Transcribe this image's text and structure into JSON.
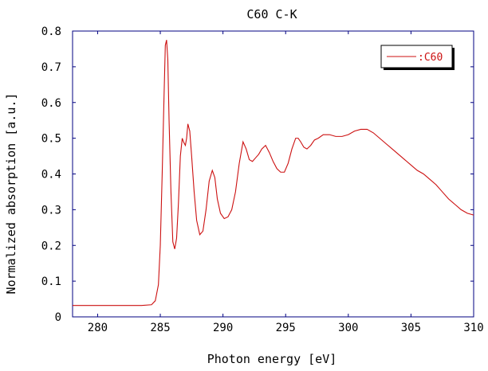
{
  "chart_data": {
    "type": "line",
    "title": "C60 C-K",
    "xlabel": "Photon energy [eV]",
    "ylabel": "Normalized absorption [a.u.]",
    "xlim": [
      278,
      310
    ],
    "ylim": [
      0,
      0.8
    ],
    "xticks": [
      280,
      285,
      290,
      295,
      300,
      305,
      310
    ],
    "yticks": [
      0,
      0.1,
      0.2,
      0.3,
      0.4,
      0.5,
      0.6,
      0.7,
      0.8
    ],
    "ytick_labels": [
      "0",
      "0.1",
      "0.2",
      "0.3",
      "0.4",
      "0.5",
      "0.6",
      "0.7",
      "0.8"
    ],
    "grid": false,
    "legend_position": "top-right",
    "colors": {
      "axes": "#000080",
      "series": "#cc1010"
    },
    "series": [
      {
        "name": ":C60",
        "x": [
          278,
          280,
          282,
          283.5,
          284.3,
          284.6,
          284.85,
          285.0,
          285.15,
          285.3,
          285.4,
          285.5,
          285.6,
          285.7,
          285.85,
          286.0,
          286.15,
          286.3,
          286.45,
          286.6,
          286.75,
          286.85,
          287.0,
          287.1,
          287.2,
          287.35,
          287.5,
          287.7,
          287.9,
          288.15,
          288.4,
          288.65,
          288.9,
          289.15,
          289.35,
          289.55,
          289.8,
          290.1,
          290.4,
          290.7,
          291.0,
          291.3,
          291.6,
          291.85,
          292.1,
          292.35,
          292.6,
          292.85,
          293.1,
          293.4,
          293.7,
          294.0,
          294.3,
          294.6,
          294.9,
          295.2,
          295.5,
          295.8,
          296.0,
          296.2,
          296.45,
          296.7,
          297.0,
          297.3,
          297.6,
          298.0,
          298.5,
          299.0,
          299.5,
          300.0,
          300.5,
          301.0,
          301.5,
          302.0,
          302.5,
          303.0,
          303.5,
          304.0,
          304.5,
          305.0,
          305.5,
          306.0,
          306.5,
          307.0,
          307.5,
          308.0,
          308.5,
          309.0,
          309.5,
          310.0
        ],
        "y": [
          0.032,
          0.032,
          0.032,
          0.032,
          0.034,
          0.045,
          0.09,
          0.2,
          0.4,
          0.62,
          0.76,
          0.775,
          0.72,
          0.55,
          0.35,
          0.21,
          0.19,
          0.22,
          0.32,
          0.45,
          0.5,
          0.49,
          0.48,
          0.5,
          0.54,
          0.52,
          0.45,
          0.35,
          0.27,
          0.23,
          0.24,
          0.3,
          0.38,
          0.41,
          0.39,
          0.33,
          0.29,
          0.275,
          0.28,
          0.3,
          0.35,
          0.43,
          0.49,
          0.47,
          0.44,
          0.435,
          0.445,
          0.455,
          0.47,
          0.48,
          0.46,
          0.435,
          0.415,
          0.405,
          0.405,
          0.43,
          0.47,
          0.5,
          0.5,
          0.49,
          0.475,
          0.47,
          0.48,
          0.495,
          0.5,
          0.51,
          0.51,
          0.505,
          0.505,
          0.51,
          0.52,
          0.525,
          0.525,
          0.515,
          0.5,
          0.485,
          0.47,
          0.455,
          0.44,
          0.425,
          0.41,
          0.4,
          0.385,
          0.37,
          0.35,
          0.33,
          0.315,
          0.3,
          0.29,
          0.285
        ]
      }
    ]
  }
}
